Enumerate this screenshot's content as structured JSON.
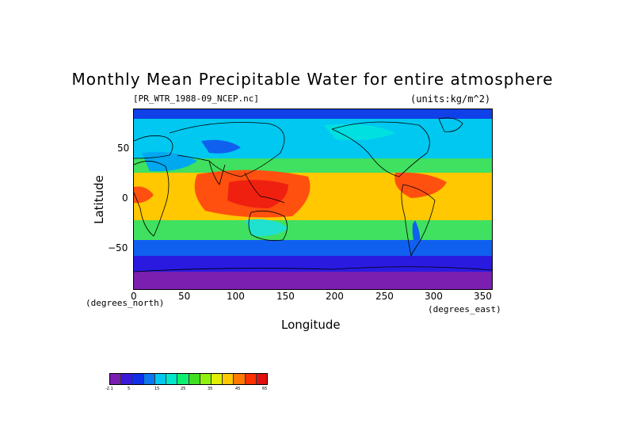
{
  "title": "Monthly Mean Precipitable Water for entire atmosphere",
  "file_label": "[PR_WTR_1988-09_NCEP.nc]",
  "units_label": "(units:kg/m^2)",
  "y_axis": {
    "label": "Latitude",
    "ticks": [
      "50",
      "0",
      "−50"
    ],
    "unit_label": "(degrees_north)"
  },
  "x_axis": {
    "label": "Longitude",
    "ticks": [
      "0",
      "50",
      "100",
      "150",
      "200",
      "250",
      "300",
      "350"
    ],
    "unit_label": "(degrees_east)"
  },
  "colorbar": {
    "labels": [
      "-2.1",
      "5",
      "15",
      "25",
      "35",
      "45",
      "65"
    ],
    "colors": [
      "#7a1fb0",
      "#3a1ad8",
      "#1030e8",
      "#0a78f0",
      "#00c8f0",
      "#00e8c8",
      "#10f070",
      "#40e020",
      "#90f010",
      "#e0f000",
      "#ffc800",
      "#ff7800",
      "#ff3000",
      "#e01010"
    ]
  },
  "map": {
    "lon_range": [
      0,
      360
    ],
    "lat_range": [
      -90,
      90
    ],
    "fields": {
      "polar_south": "#7a1fb0",
      "southern_ocean": "#2a1ae0",
      "midlat_south": "#1060f0",
      "warm_pool": "#ff5010",
      "tropics": "#ffc800",
      "subtropics": "#40e060",
      "north_midlat": "#00c8f0",
      "arctic": "#1040e8"
    }
  }
}
